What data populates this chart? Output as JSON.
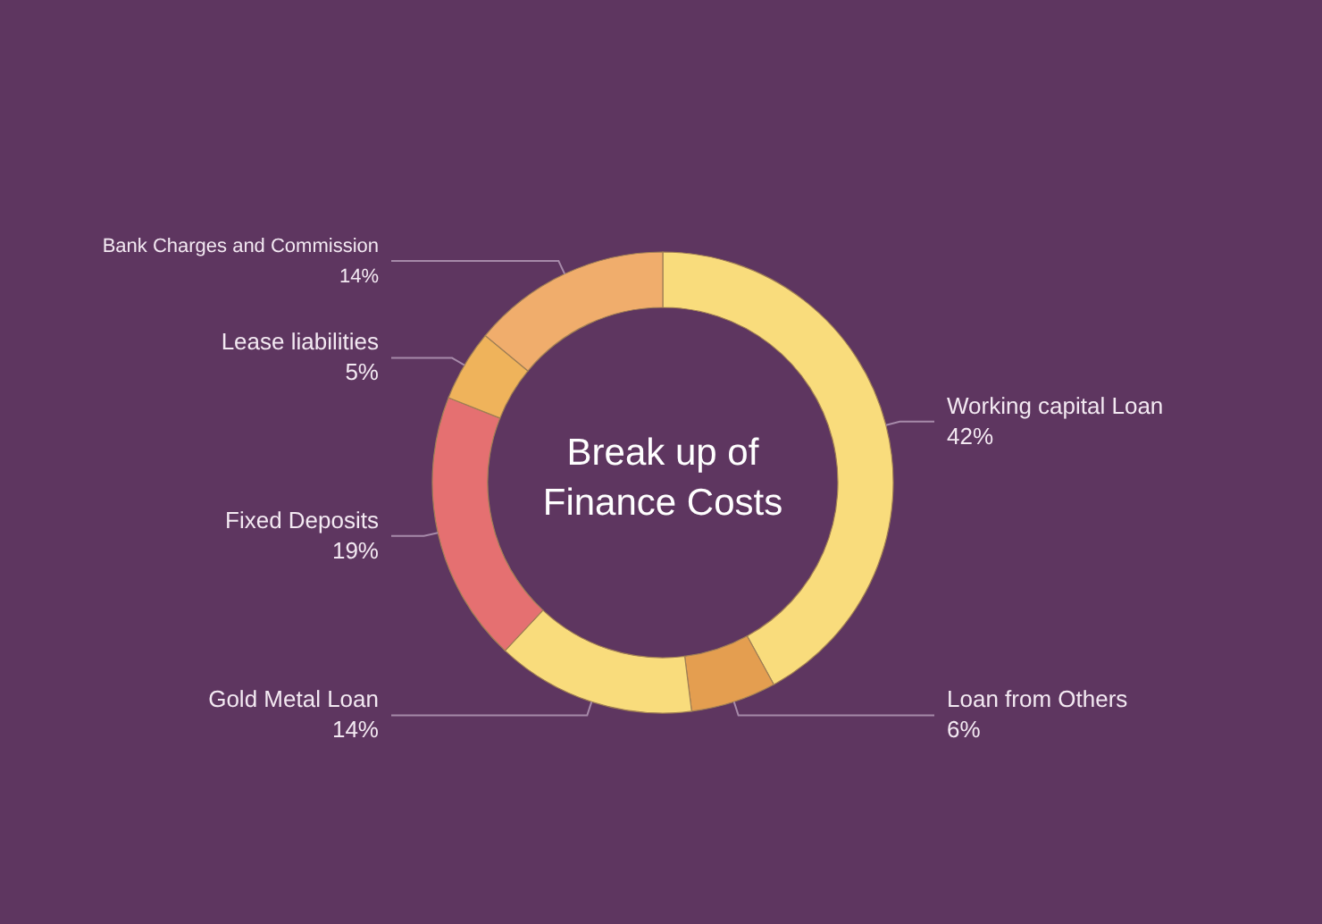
{
  "chart_data": {
    "type": "donut",
    "title": "Break up of Finance Costs",
    "categories": [
      "Working capital Loan",
      "Loan from Others",
      "Gold Metal Loan",
      "Fixed Deposits",
      "Lease liabilities",
      "Bank Charges and Commission"
    ],
    "values": [
      42,
      6,
      14,
      19,
      5,
      14
    ],
    "value_labels": [
      "42%",
      "6%",
      "14%",
      "19%",
      "5%",
      "14%"
    ],
    "colors": [
      "#f9dc7c",
      "#e49e50",
      "#f9dc7c",
      "#e57071",
      "#efb35b",
      "#f0ad6c"
    ]
  }
}
